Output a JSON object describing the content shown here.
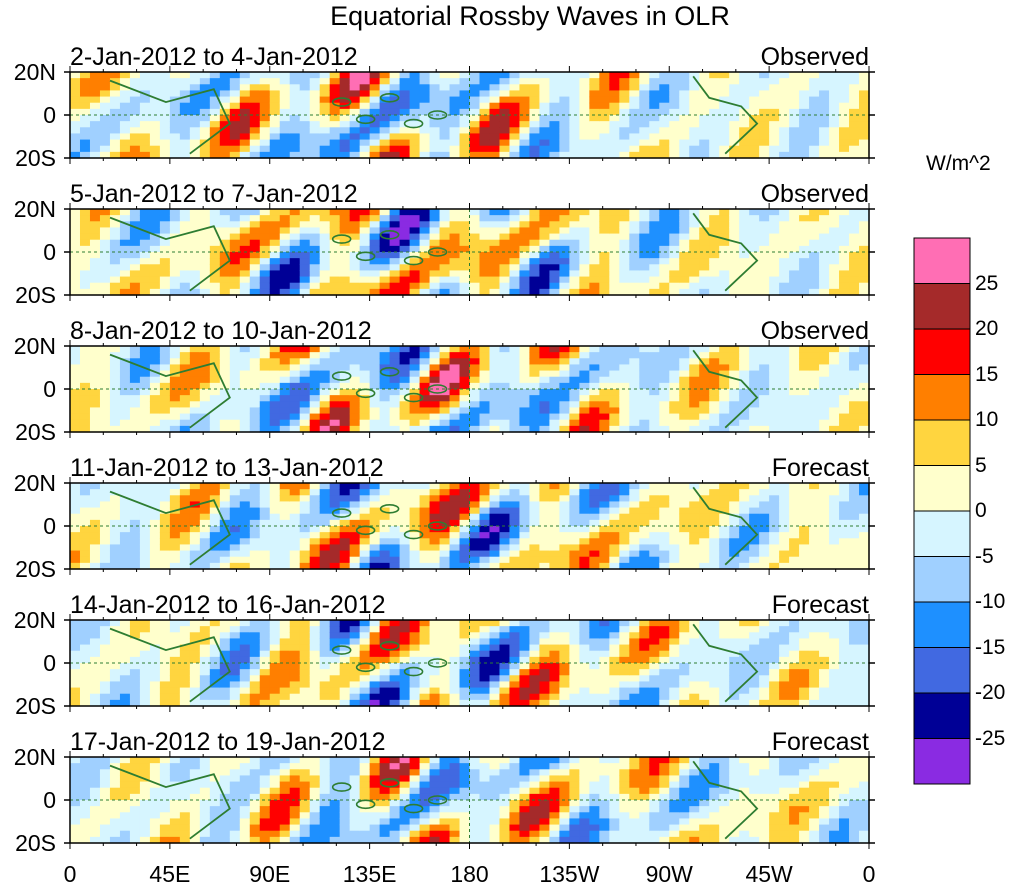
{
  "chart_data": {
    "type": "heatmap",
    "title": "Equatorial Rossby Waves in OLR",
    "units_label": "W/m^2",
    "x_ticks": [
      "0",
      "45E",
      "90E",
      "135E",
      "180",
      "135W",
      "90W",
      "45W",
      "0"
    ],
    "y_ticks": [
      "20N",
      "0",
      "20S"
    ],
    "colorbar": {
      "levels": [
        "25",
        "20",
        "15",
        "10",
        "5",
        "0",
        "-5",
        "-10",
        "-15",
        "-20",
        "-25"
      ],
      "colors": [
        "#ff6eb4",
        "#a52a2a",
        "#ff0000",
        "#ff7f00",
        "#ffd53f",
        "#ffffcc",
        "#d6f5ff",
        "#a0d0ff",
        "#1e90ff",
        "#4169e1",
        "#000096",
        "#8a2be2"
      ]
    },
    "panels": [
      {
        "date_range": "2-Jan-2012 to 4-Jan-2012",
        "kind": "Observed"
      },
      {
        "date_range": "5-Jan-2012 to 7-Jan-2012",
        "kind": "Observed"
      },
      {
        "date_range": "8-Jan-2012 to 10-Jan-2012",
        "kind": "Observed"
      },
      {
        "date_range": "11-Jan-2012 to 13-Jan-2012",
        "kind": "Forecast"
      },
      {
        "date_range": "14-Jan-2012 to 16-Jan-2012",
        "kind": "Forecast"
      },
      {
        "date_range": "17-Jan-2012 to 19-Jan-2012",
        "kind": "Forecast"
      }
    ]
  }
}
